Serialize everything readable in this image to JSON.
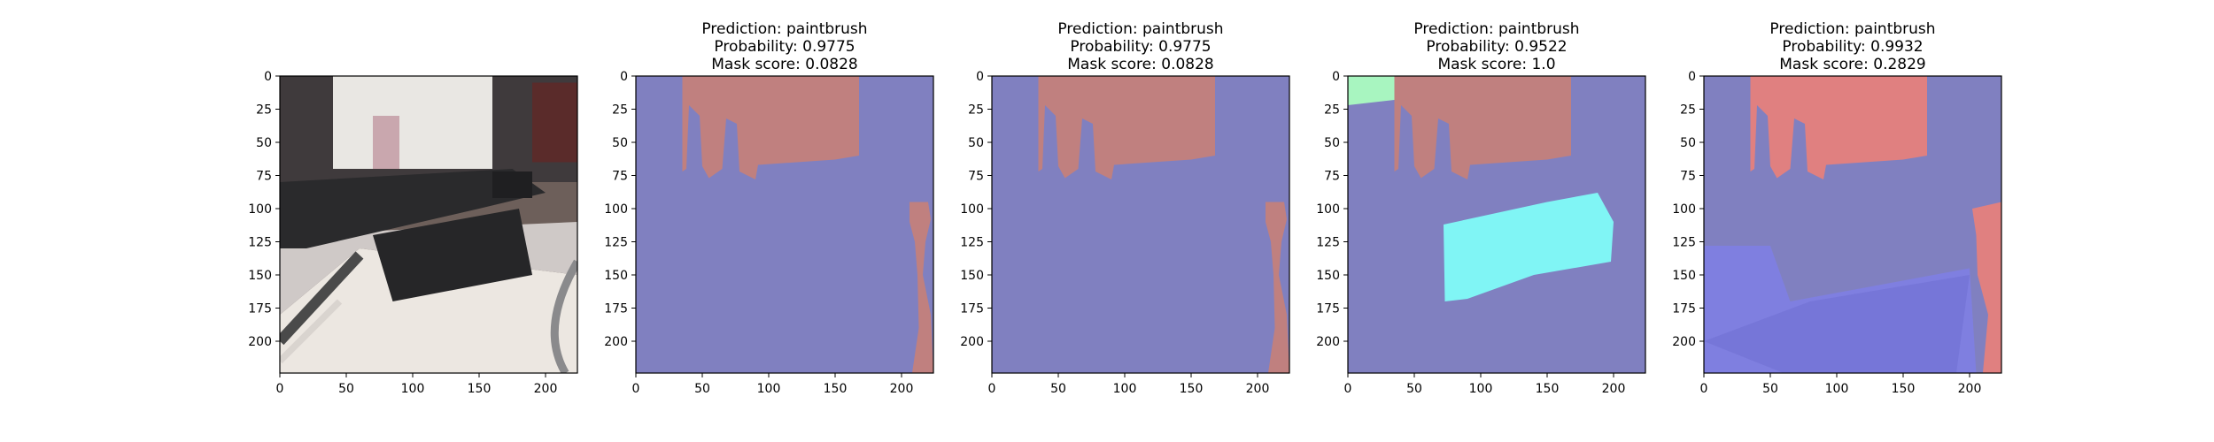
{
  "chart_data": [
    {
      "type": "image",
      "title_lines": [],
      "xticks": [
        0,
        50,
        100,
        150,
        200
      ],
      "yticks": [
        0,
        25,
        50,
        75,
        100,
        125,
        150,
        175,
        200
      ],
      "xlim": [
        0,
        224
      ],
      "ylim": [
        224,
        0
      ],
      "image_kind": "photo"
    },
    {
      "type": "image",
      "title_lines": [
        "Prediction: paintbrush",
        "Probability: 0.9775",
        "Mask score: 0.0828"
      ],
      "prediction": "paintbrush",
      "probability": 0.9775,
      "mask_score": 0.0828,
      "xticks": [
        0,
        50,
        100,
        150,
        200
      ],
      "yticks": [
        0,
        25,
        50,
        75,
        100,
        125,
        150,
        175,
        200
      ],
      "xlim": [
        0,
        224
      ],
      "ylim": [
        224,
        0
      ],
      "image_kind": "mask-a"
    },
    {
      "type": "image",
      "title_lines": [
        "Prediction: paintbrush",
        "Probability: 0.9775",
        "Mask score: 0.0828"
      ],
      "prediction": "paintbrush",
      "probability": 0.9775,
      "mask_score": 0.0828,
      "xticks": [
        0,
        50,
        100,
        150,
        200
      ],
      "yticks": [
        0,
        25,
        50,
        75,
        100,
        125,
        150,
        175,
        200
      ],
      "xlim": [
        0,
        224
      ],
      "ylim": [
        224,
        0
      ],
      "image_kind": "mask-a"
    },
    {
      "type": "image",
      "title_lines": [
        "Prediction: paintbrush",
        "Probability: 0.9522",
        "Mask score: 1.0"
      ],
      "prediction": "paintbrush",
      "probability": 0.9522,
      "mask_score": 1.0,
      "xticks": [
        0,
        50,
        100,
        150,
        200
      ],
      "yticks": [
        0,
        25,
        50,
        75,
        100,
        125,
        150,
        175,
        200
      ],
      "xlim": [
        0,
        224
      ],
      "ylim": [
        224,
        0
      ],
      "image_kind": "mask-b"
    },
    {
      "type": "image",
      "title_lines": [
        "Prediction: paintbrush",
        "Probability: 0.9932",
        "Mask score: 0.2829"
      ],
      "prediction": "paintbrush",
      "probability": 0.9932,
      "mask_score": 0.2829,
      "xticks": [
        0,
        50,
        100,
        150,
        200
      ],
      "yticks": [
        0,
        25,
        50,
        75,
        100,
        125,
        150,
        175,
        200
      ],
      "xlim": [
        0,
        224
      ],
      "ylim": [
        224,
        0
      ],
      "image_kind": "mask-c"
    }
  ],
  "colors": {
    "background_region": "#8080c0",
    "red_region": "#c0807f",
    "red_region_bright": "#e08080",
    "green_region": "#a8f5c0",
    "cyan_region": "#80f5f5",
    "blue_region": "#7f7fe0"
  }
}
